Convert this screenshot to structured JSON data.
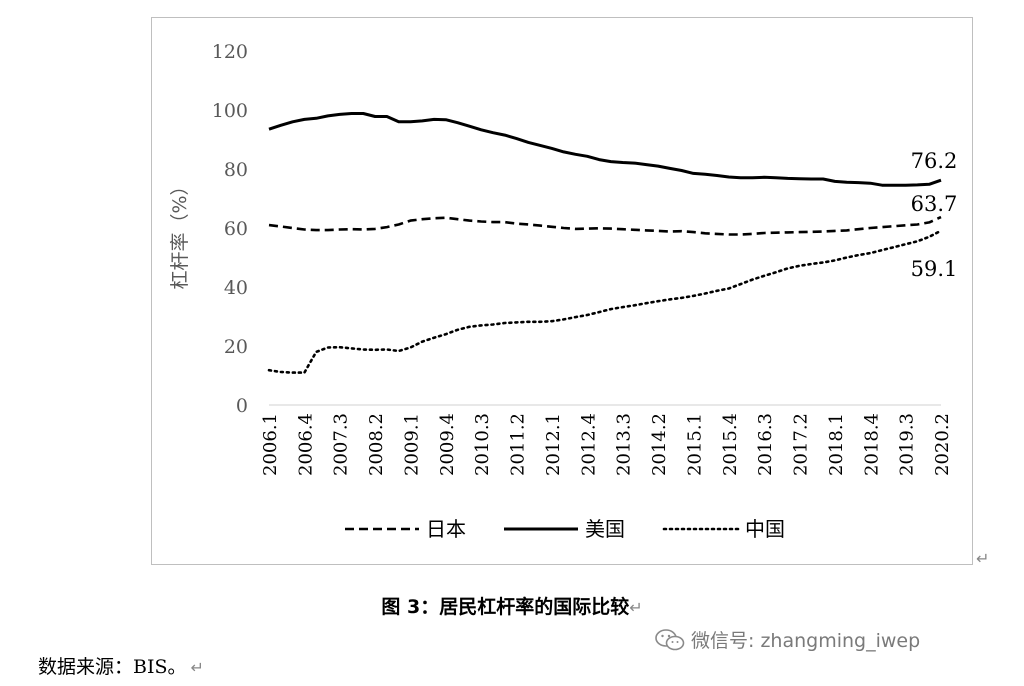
{
  "chart_data": {
    "type": "line",
    "title": "",
    "xlabel": "",
    "ylabel": "杠杆率（%）",
    "ylim": [
      0,
      120
    ],
    "yticks": [
      0,
      20,
      40,
      60,
      80,
      100,
      120
    ],
    "grid": false,
    "legend_position": "bottom",
    "x": [
      "2006.1",
      "2006.2",
      "2006.3",
      "2006.4",
      "2007.1",
      "2007.2",
      "2007.3",
      "2007.4",
      "2008.1",
      "2008.2",
      "2008.3",
      "2008.4",
      "2009.1",
      "2009.2",
      "2009.3",
      "2009.4",
      "2010.1",
      "2010.2",
      "2010.3",
      "2010.4",
      "2011.1",
      "2011.2",
      "2011.3",
      "2011.4",
      "2012.1",
      "2012.2",
      "2012.3",
      "2012.4",
      "2013.1",
      "2013.2",
      "2013.3",
      "2013.4",
      "2014.1",
      "2014.2",
      "2014.3",
      "2014.4",
      "2015.1",
      "2015.2",
      "2015.3",
      "2015.4",
      "2016.1",
      "2016.2",
      "2016.3",
      "2016.4",
      "2017.1",
      "2017.2",
      "2017.3",
      "2017.4",
      "2018.1",
      "2018.2",
      "2018.3",
      "2018.4",
      "2019.1",
      "2019.2",
      "2019.3",
      "2019.4",
      "2020.1",
      "2020.2"
    ],
    "x_tick_labels": [
      "2006.1",
      "2006.4",
      "2007.3",
      "2008.2",
      "2009.1",
      "2009.4",
      "2010.3",
      "2011.2",
      "2012.1",
      "2012.4",
      "2013.3",
      "2014.2",
      "2015.1",
      "2015.4",
      "2016.3",
      "2017.2",
      "2018.1",
      "2018.4",
      "2019.3",
      "2020.2"
    ],
    "series": [
      {
        "name": "日本",
        "style": "dashed",
        "color": "#000000",
        "values": [
          61,
          60.5,
          60,
          59.5,
          59.3,
          59.3,
          59.5,
          59.6,
          59.5,
          59.7,
          60.3,
          61.2,
          62.5,
          63.0,
          63.3,
          63.5,
          63.0,
          62.5,
          62.2,
          62.0,
          62.0,
          61.5,
          61.2,
          60.8,
          60.4,
          60.0,
          59.7,
          59.8,
          59.9,
          59.8,
          59.6,
          59.4,
          59.2,
          59.0,
          58.8,
          58.9,
          58.6,
          58.2,
          58.0,
          57.8,
          57.8,
          58.0,
          58.3,
          58.4,
          58.5,
          58.6,
          58.7,
          58.8,
          59.0,
          59.2,
          59.6,
          60.0,
          60.3,
          60.6,
          60.9,
          61.2,
          61.9,
          63.7
        ]
      },
      {
        "name": "美国",
        "style": "solid",
        "color": "#000000",
        "values": [
          93.5,
          94.8,
          96.0,
          96.8,
          97.2,
          98.0,
          98.5,
          98.8,
          98.8,
          97.8,
          97.8,
          96.0,
          96.0,
          96.3,
          96.8,
          96.7,
          95.7,
          94.5,
          93.3,
          92.3,
          91.5,
          90.3,
          89.0,
          88.0,
          87.0,
          85.8,
          85.0,
          84.3,
          83.2,
          82.5,
          82.2,
          82.0,
          81.5,
          81.0,
          80.2,
          79.5,
          78.5,
          78.2,
          77.8,
          77.3,
          77.0,
          77.0,
          77.2,
          77.0,
          76.8,
          76.7,
          76.6,
          76.6,
          75.8,
          75.5,
          75.4,
          75.2,
          74.5,
          74.5,
          74.5,
          74.6,
          74.8,
          76.2
        ]
      },
      {
        "name": "中国",
        "style": "dotted",
        "color": "#000000",
        "values": [
          11.8,
          11.2,
          11.0,
          11.0,
          18.0,
          19.5,
          19.6,
          19.2,
          18.8,
          18.7,
          18.8,
          18.3,
          19.5,
          21.5,
          22.8,
          24.0,
          25.5,
          26.5,
          27.0,
          27.3,
          27.8,
          28.0,
          28.2,
          28.2,
          28.4,
          29.0,
          29.8,
          30.5,
          31.5,
          32.5,
          33.2,
          33.8,
          34.5,
          35.2,
          35.8,
          36.3,
          37.0,
          37.8,
          38.7,
          39.5,
          41.0,
          42.5,
          43.8,
          45.0,
          46.3,
          47.2,
          47.8,
          48.3,
          49.0,
          50.0,
          50.8,
          51.5,
          52.5,
          53.5,
          54.5,
          55.5,
          57.0,
          59.1
        ]
      }
    ],
    "end_labels": [
      "76.2",
      "63.7",
      "59.1"
    ]
  },
  "caption": "图 3：居民杠杆率的国际比较",
  "source_note": "数据来源：BIS。",
  "watermark": "微信号: zhangming_iwep",
  "paragraph_mark": "↵"
}
